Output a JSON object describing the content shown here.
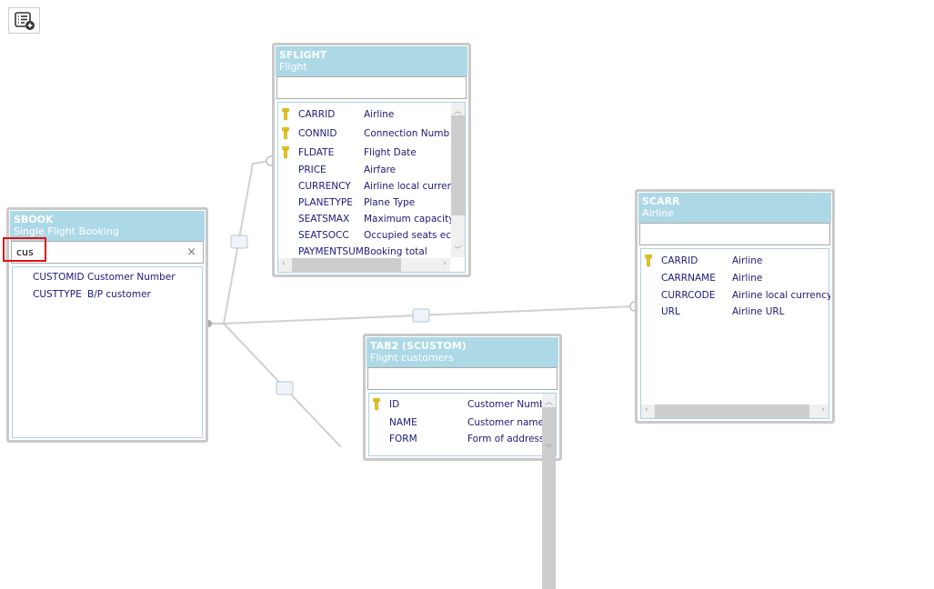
{
  "toolbar": {
    "add_table_icon": "list-add-icon"
  },
  "colors": {
    "header": "#add8e6",
    "highlight": "#e01010",
    "field_text": "#1a1a7a"
  },
  "tables": [
    {
      "id": "sflight",
      "name": "SFLIGHT",
      "desc": "Flight",
      "filter": "",
      "rows": [
        {
          "key": true,
          "field": "CARRID",
          "desc": "Airline"
        },
        {
          "key": true,
          "field": "CONNID",
          "desc": "Connection Numb"
        },
        {
          "key": true,
          "field": "FLDATE",
          "desc": "Flight Date"
        },
        {
          "key": false,
          "field": "PRICE",
          "desc": "Airfare"
        },
        {
          "key": false,
          "field": "CURRENCY",
          "desc": "Airline local curren"
        },
        {
          "key": false,
          "field": "PLANETYPE",
          "desc": "Plane Type"
        },
        {
          "key": false,
          "field": "SEATSMAX",
          "desc": "Maximum capacity"
        },
        {
          "key": false,
          "field": "SEATSOCC",
          "desc": "Occupied seats ec"
        },
        {
          "key": false,
          "field": "PAYMENTSUM",
          "desc": "Booking total"
        }
      ]
    },
    {
      "id": "sbook",
      "name": "SBOOK",
      "desc": "Single Flight Booking",
      "filter": "cus",
      "clear_icon": "×",
      "rows": [
        {
          "key": false,
          "field": "CUSTOMID",
          "desc": "Customer Number"
        },
        {
          "key": false,
          "field": "CUSTTYPE",
          "desc": "B/P customer"
        }
      ]
    },
    {
      "id": "scarr",
      "name": "SCARR",
      "desc": "Airline",
      "filter": "",
      "rows": [
        {
          "key": true,
          "field": "CARRID",
          "desc": "Airline"
        },
        {
          "key": false,
          "field": "CARRNAME",
          "desc": "Airline"
        },
        {
          "key": false,
          "field": "CURRCODE",
          "desc": "Airline local currency"
        },
        {
          "key": false,
          "field": "URL",
          "desc": "Airline URL"
        }
      ]
    },
    {
      "id": "tab2",
      "name": "TAB2 (SCUSTOM)",
      "desc": "Flight customers",
      "filter": "",
      "rows": [
        {
          "key": true,
          "field": "ID",
          "desc": "Customer Number"
        },
        {
          "key": false,
          "field": "NAME",
          "desc": "Customer name"
        },
        {
          "key": false,
          "field": "FORM",
          "desc": "Form of address"
        }
      ]
    }
  ]
}
